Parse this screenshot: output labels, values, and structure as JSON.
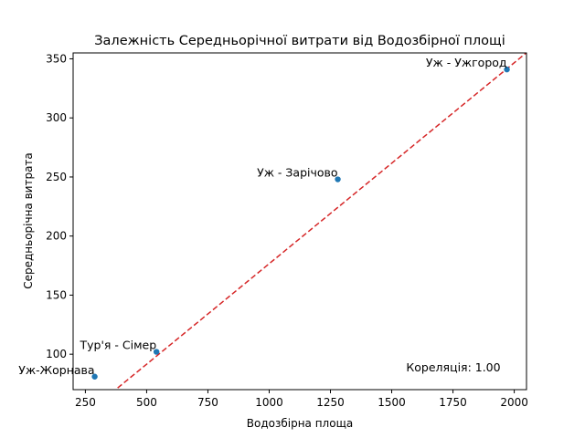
{
  "chart_data": {
    "type": "scatter",
    "title": "Залежність Середньорічної витрати від Водозбірної площі",
    "xlabel": "Водозбірна площа",
    "ylabel": "Середньорічна витрата",
    "xlim": [
      200,
      2050
    ],
    "ylim": [
      70,
      355
    ],
    "x_ticks": [
      250,
      500,
      750,
      1000,
      1250,
      1500,
      1750,
      2000
    ],
    "y_ticks": [
      100,
      150,
      200,
      250,
      300,
      350
    ],
    "grid": false,
    "points": [
      {
        "label": "Уж-Жорнава",
        "x": 288,
        "y": 81
      },
      {
        "label": "Тур'я - Сімер",
        "x": 540,
        "y": 102
      },
      {
        "label": "Уж - Зарічово",
        "x": 1280,
        "y": 248
      },
      {
        "label": "Уж - Ужгород",
        "x": 1970,
        "y": 341
      }
    ],
    "trendline": {
      "slope": 0.1701,
      "intercept": 6.5,
      "color": "#d62728",
      "style": "dashed"
    },
    "point_color": "#1f77b4",
    "annotation": "Кореляція: 1.00"
  }
}
